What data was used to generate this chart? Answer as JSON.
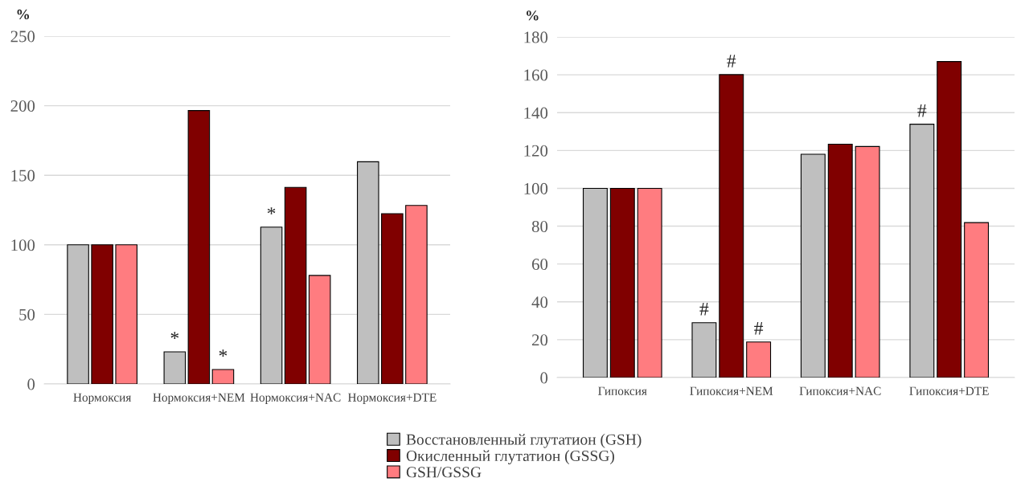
{
  "chart_data": [
    {
      "type": "bar",
      "ylabel": "%",
      "categories": [
        "Нормоксия",
        "Нормоксия+NEM",
        "Нормоксия+NAC",
        "Нормоксия+DTE"
      ],
      "series": [
        {
          "name": "Восстановленный глутатион (GSH)",
          "color": "#bfbfbf",
          "values": [
            100,
            23.1,
            112.7,
            159.7
          ],
          "value_labels": [
            null,
            "*",
            "*",
            null
          ]
        },
        {
          "name": "Окисленный глутатион (GSSG)",
          "color": "#800000",
          "values": [
            100,
            196.5,
            141.3,
            122.4
          ]
        },
        {
          "name": "GSH/GSSG",
          "color": "#ff7c80",
          "values": [
            100,
            10.4,
            78,
            128.3
          ],
          "value_labels": [
            null,
            "*",
            null,
            null
          ]
        }
      ],
      "ylim": [
        0,
        250
      ],
      "yticks": [
        0,
        50,
        100,
        150,
        200,
        250
      ],
      "grid": "y",
      "legend": "bottom"
    },
    {
      "type": "bar",
      "ylabel": "%",
      "categories": [
        "Гипоксия",
        "Гипоксия+NEM",
        "Гипоксия+NAC",
        "Гипоксия+DTE"
      ],
      "series": [
        {
          "color": "#bfbfbf",
          "values": [
            100,
            29,
            118,
            133.9
          ],
          "value_labels": [
            null,
            "#",
            null,
            "#"
          ]
        },
        {
          "color": "#800000",
          "values": [
            100,
            160.1,
            123.3,
            167
          ],
          "value_labels": [
            null,
            "#",
            null,
            null
          ]
        },
        {
          "color": "#ff7c80",
          "values": [
            100,
            18.8,
            122.1,
            81.9
          ],
          "value_labels": [
            null,
            "#",
            null,
            null
          ]
        }
      ],
      "ylim": [
        0,
        180
      ],
      "yticks": [
        0,
        20,
        40,
        60,
        80,
        100,
        120,
        140,
        160,
        180
      ],
      "grid": "y"
    }
  ]
}
